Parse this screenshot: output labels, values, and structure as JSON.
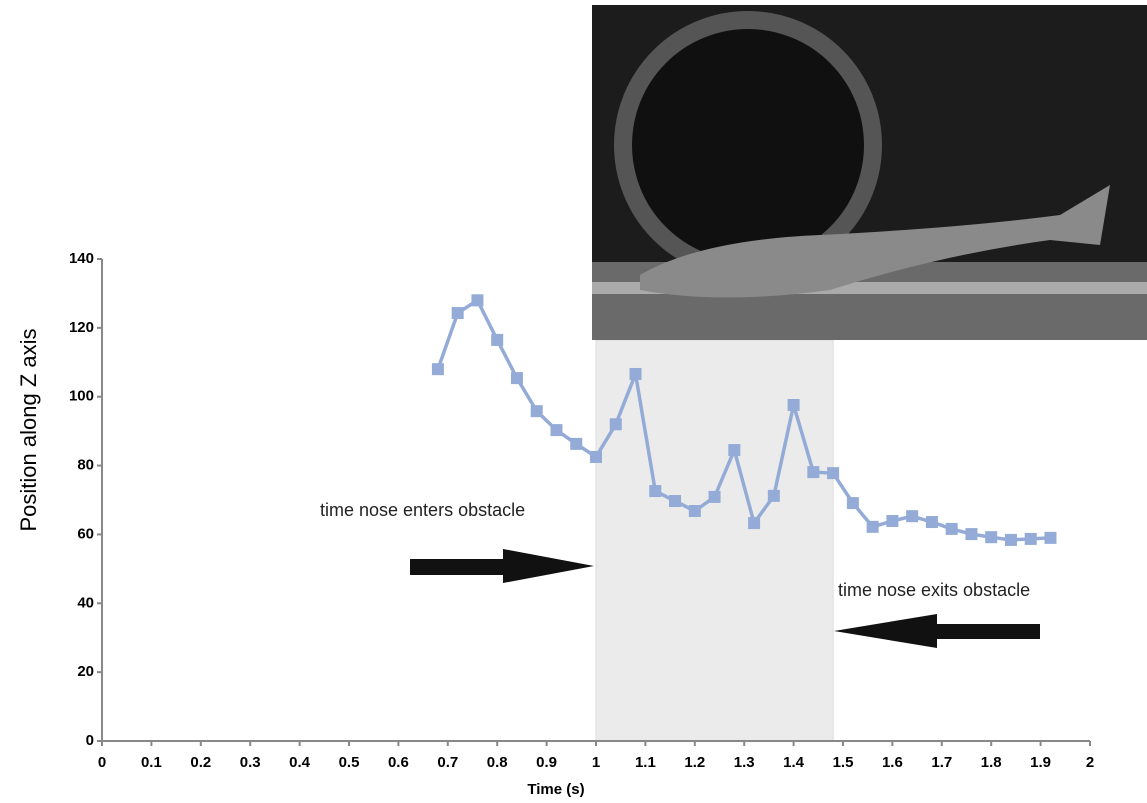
{
  "chart_data": {
    "type": "line",
    "x_label": "Time (s)",
    "y_label": "Position along Z axis",
    "xlim": [
      0,
      2
    ],
    "ylim": [
      0,
      140
    ],
    "xticks": [
      0,
      0.1,
      0.2,
      0.3,
      0.4,
      0.5,
      0.6,
      0.7,
      0.8,
      0.9,
      1,
      1.1,
      1.2,
      1.3,
      1.4,
      1.5,
      1.6,
      1.7,
      1.8,
      1.9,
      2
    ],
    "yticks": [
      0,
      20,
      40,
      60,
      80,
      100,
      120,
      140
    ],
    "shaded_region": [
      1.0,
      1.48
    ],
    "shaded_color": "#ebebeb",
    "annotations": [
      "time nose enters obstacle",
      "time nose exits obstacle"
    ],
    "x": [
      0.68,
      0.72,
      0.76,
      0.8,
      0.84,
      0.88,
      0.92,
      0.96,
      1.0,
      1.04,
      1.08,
      1.12,
      1.16,
      1.2,
      1.24,
      1.28,
      1.32,
      1.36,
      1.4,
      1.44,
      1.48,
      1.52,
      1.56,
      1.6,
      1.64,
      1.68,
      1.72,
      1.76,
      1.8,
      1.84,
      1.88,
      1.92
    ],
    "series": [
      {
        "color": "#93abd6",
        "values": [
          108,
          124.3,
          128,
          116.5,
          105.4,
          95.8,
          90.3,
          86.3,
          82.5,
          92,
          106.6,
          72.6,
          69.7,
          66.8,
          70.9,
          84.5,
          63.3,
          71.2,
          97.6,
          78.1,
          77.8,
          69.1,
          62.2,
          63.9,
          65.3,
          63.6,
          61.6,
          60.1,
          59.2,
          58.4,
          58.7,
          59
        ]
      }
    ]
  }
}
